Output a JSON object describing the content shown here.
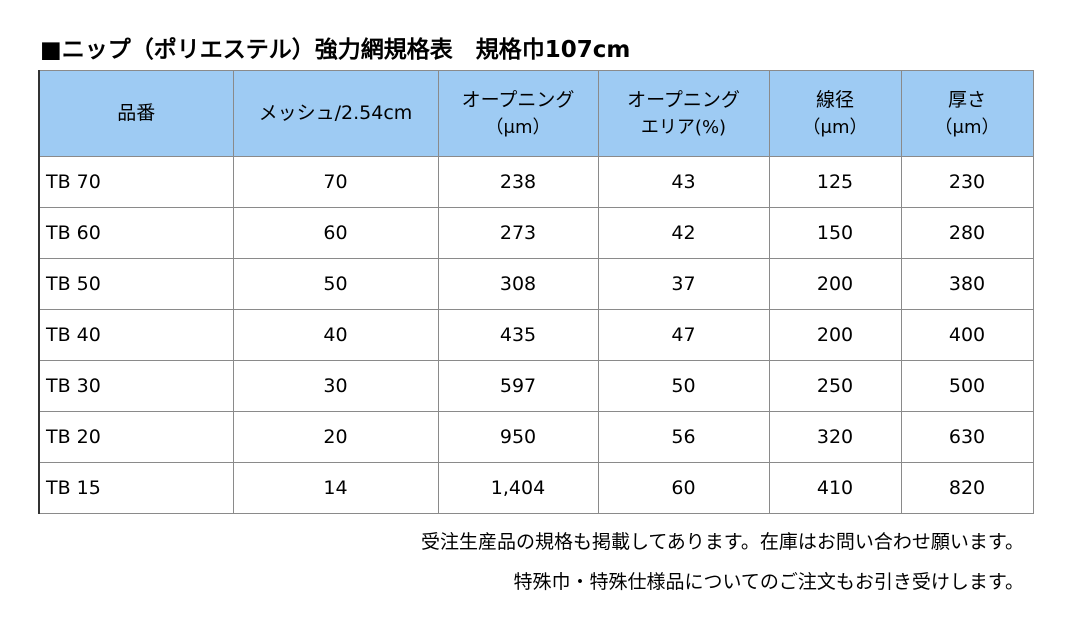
{
  "title": "■ニップ（ポリエステル）強力網規格表　規格巾107cm",
  "table": {
    "header": [
      [
        "品番"
      ],
      [
        "メッシュ/2.54cm"
      ],
      [
        "オープニング",
        "（μm）"
      ],
      [
        "オープニング",
        "エリア(%)"
      ],
      [
        "線径",
        "（μm）"
      ],
      [
        "厚さ",
        "（μm）"
      ]
    ],
    "rows": [
      [
        "TB 70",
        "70",
        "238",
        "43",
        "125",
        "230"
      ],
      [
        "TB 60",
        "60",
        "273",
        "42",
        "150",
        "280"
      ],
      [
        "TB 50",
        "50",
        "308",
        "37",
        "200",
        "380"
      ],
      [
        "TB 40",
        "40",
        "435",
        "47",
        "200",
        "400"
      ],
      [
        "TB 30",
        "30",
        "597",
        "50",
        "250",
        "500"
      ],
      [
        "TB 20",
        "20",
        "950",
        "56",
        "320",
        "630"
      ],
      [
        "TB 15",
        "14",
        "1,404",
        "60",
        "410",
        "820"
      ]
    ]
  },
  "notes": [
    "受注生産品の規格も掲載してあります。在庫はお問い合わせ願います。",
    "特殊巾・特殊仕様品についてのご注文もお引き受けします。"
  ]
}
